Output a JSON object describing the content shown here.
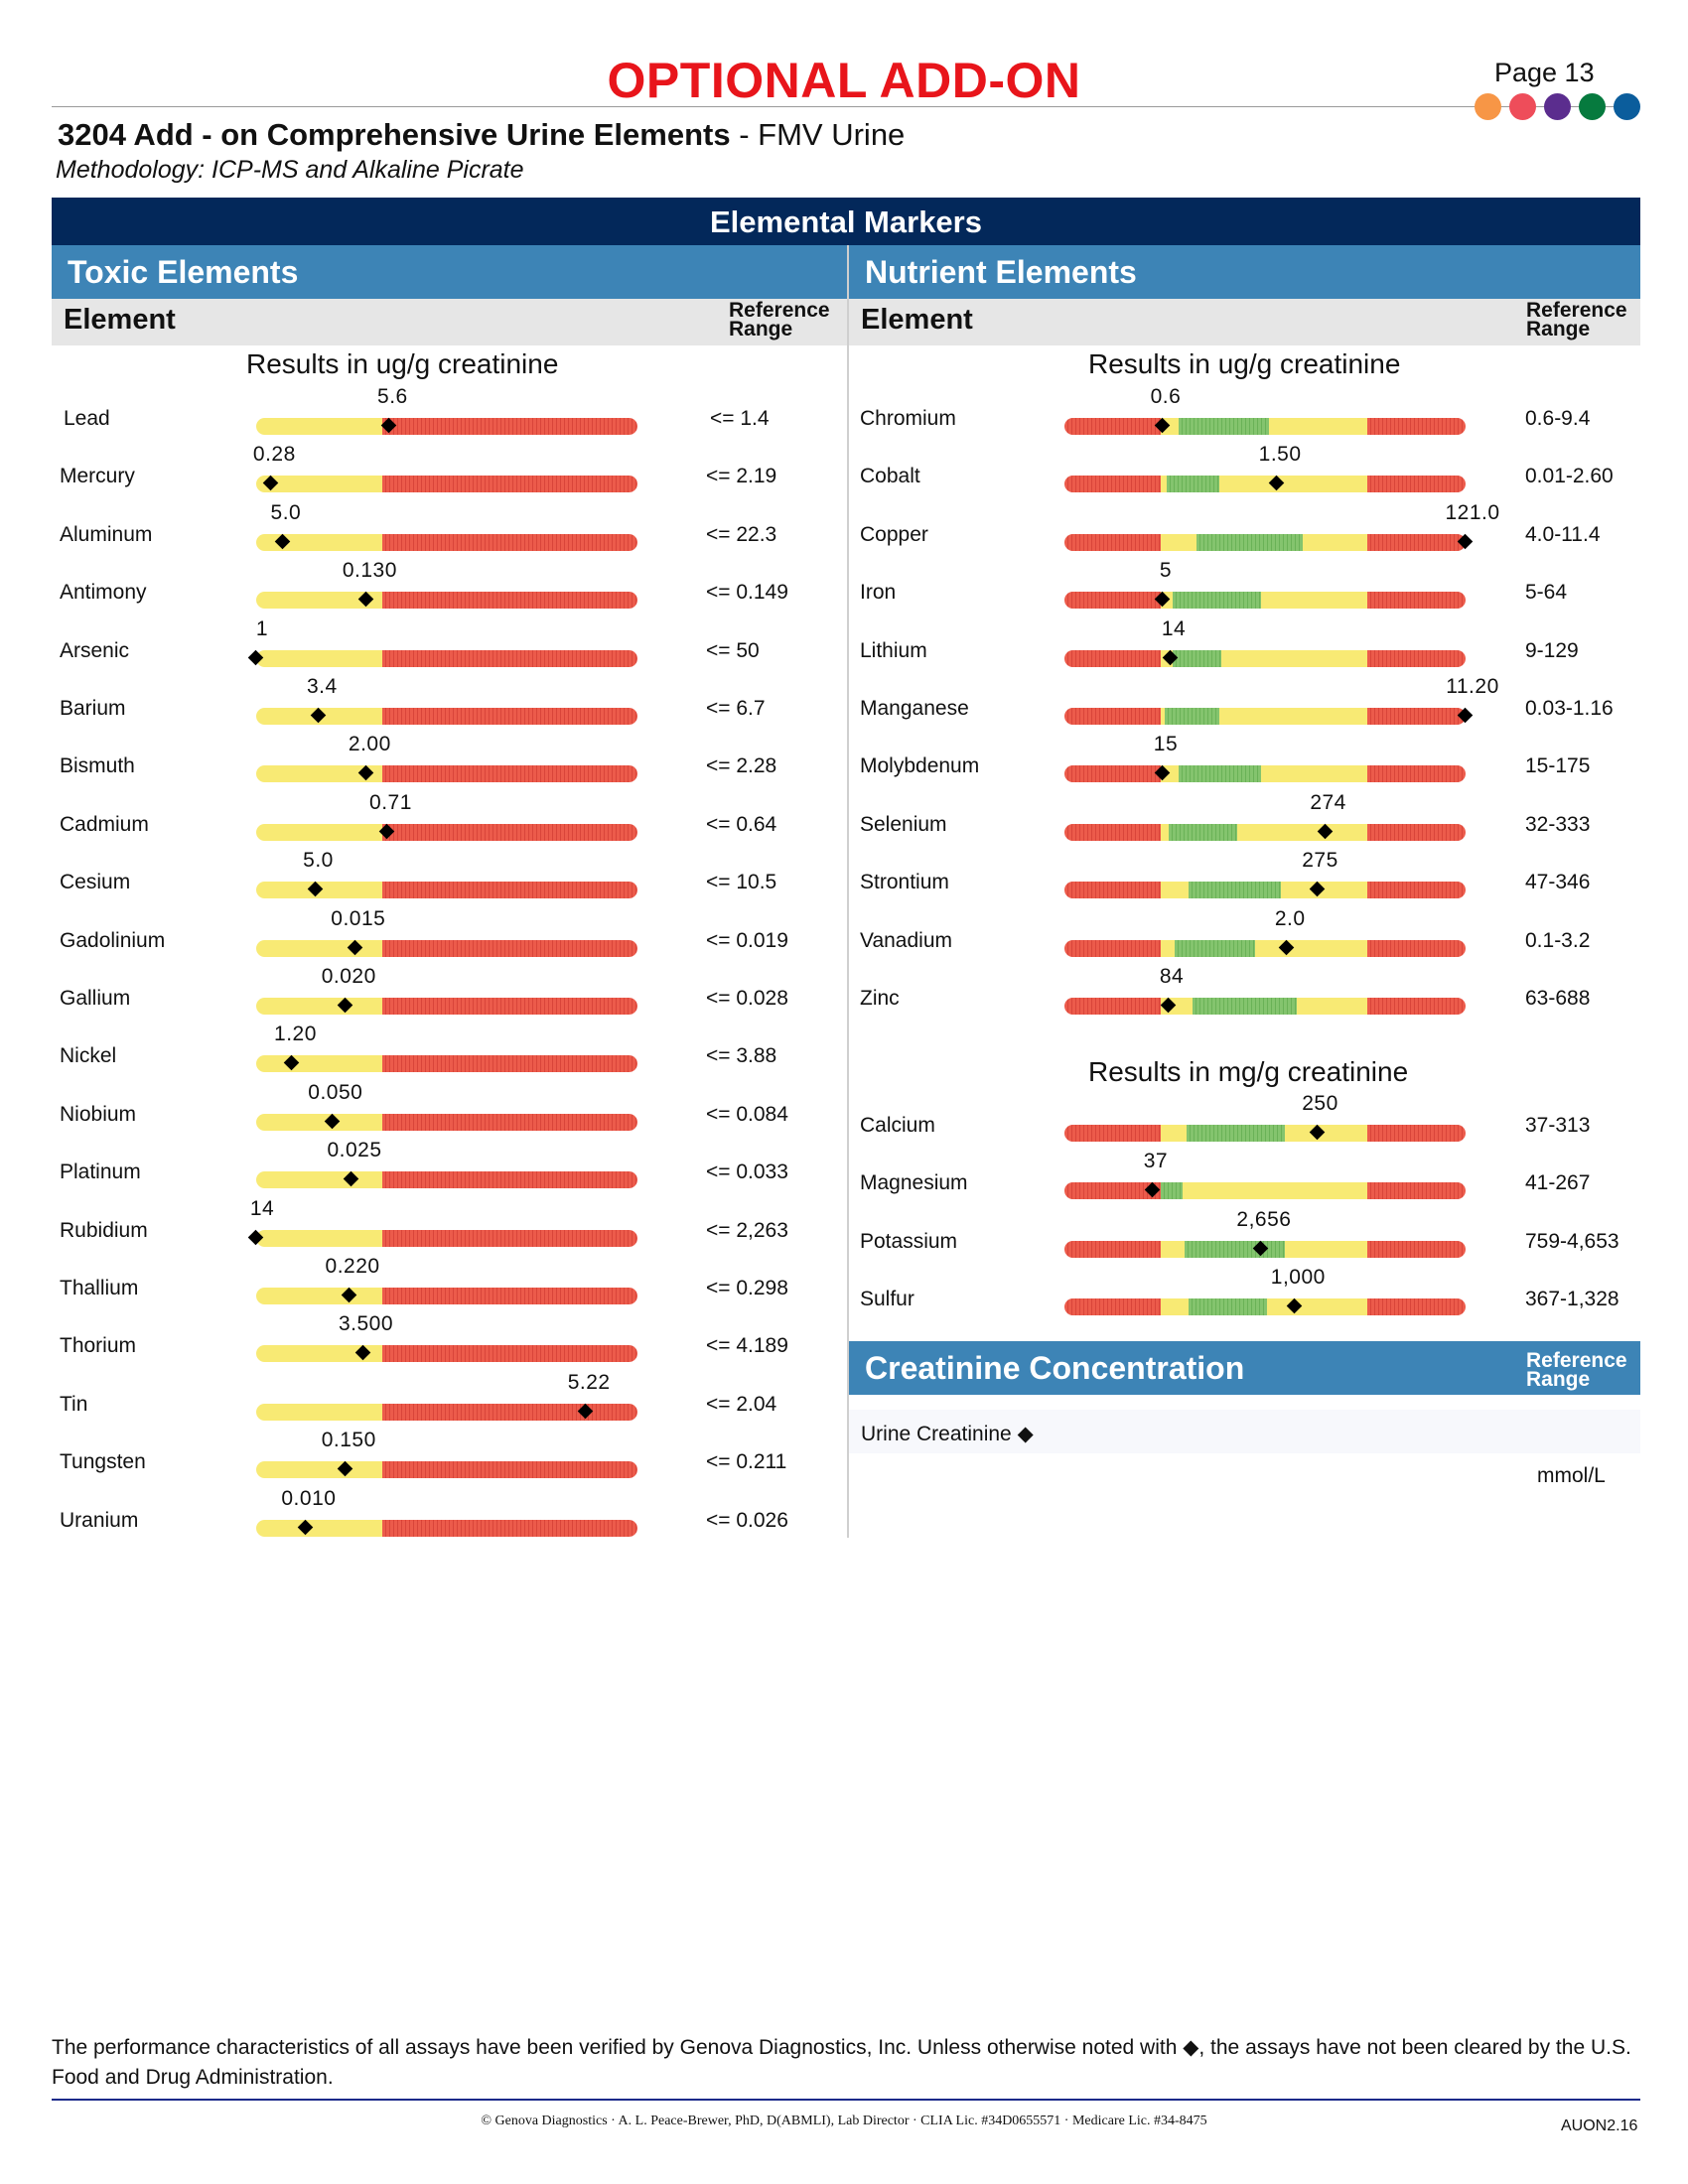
{
  "header": {
    "title": "OPTIONAL ADD-ON",
    "page": "Page 13",
    "dots": [
      "#f79646",
      "#ee4d5a",
      "#5b2d8e",
      "#067a3e",
      "#0b5d9c"
    ],
    "test_name": "3204 Add - on Comprehensive Urine Elements",
    "test_suffix": "- FMV Urine",
    "methodology": "Methodology: ICP-MS and Alkaline Picrate"
  },
  "markers_title": "Elemental Markers",
  "toxic": {
    "title": "Toxic Elements",
    "col_element": "Element",
    "col_ref": [
      "Reference",
      "Range"
    ],
    "units": "Results in ug/g creatinine",
    "rows": [
      {
        "name": "Lead",
        "value": "5.6",
        "ref": "<= 1.4",
        "pos": 0.35
      },
      {
        "name": "Mercury",
        "value": "0.28",
        "ref": "<= 2.19",
        "pos": 0.04
      },
      {
        "name": "Aluminum",
        "value": "5.0",
        "ref": "<= 22.3",
        "pos": 0.07
      },
      {
        "name": "Antimony",
        "value": "0.130",
        "ref": "<= 0.149",
        "pos": 0.29
      },
      {
        "name": "Arsenic",
        "value": "1",
        "ref": "<= 50",
        "pos": 0.0
      },
      {
        "name": "Barium",
        "value": "3.4",
        "ref": "<= 6.7",
        "pos": 0.165
      },
      {
        "name": "Bismuth",
        "value": "2.00",
        "ref": "<= 2.28",
        "pos": 0.29
      },
      {
        "name": "Cadmium",
        "value": "0.71",
        "ref": "<= 0.64",
        "pos": 0.345
      },
      {
        "name": "Cesium",
        "value": "5.0",
        "ref": "<= 10.5",
        "pos": 0.155
      },
      {
        "name": "Gadolinium",
        "value": "0.015",
        "ref": "<= 0.019",
        "pos": 0.26
      },
      {
        "name": "Gallium",
        "value": "0.020",
        "ref": "<= 0.028",
        "pos": 0.235
      },
      {
        "name": "Nickel",
        "value": "1.20",
        "ref": "<= 3.88",
        "pos": 0.095
      },
      {
        "name": "Niobium",
        "value": "0.050",
        "ref": "<= 0.084",
        "pos": 0.2
      },
      {
        "name": "Platinum",
        "value": "0.025",
        "ref": "<= 0.033",
        "pos": 0.25
      },
      {
        "name": "Rubidium",
        "value": "14",
        "ref": "<= 2,263",
        "pos": 0.0
      },
      {
        "name": "Thallium",
        "value": "0.220",
        "ref": "<= 0.298",
        "pos": 0.245
      },
      {
        "name": "Thorium",
        "value": "3.500",
        "ref": "<= 4.189",
        "pos": 0.28
      },
      {
        "name": "Tin",
        "value": "5.22",
        "ref": "<= 2.04",
        "pos": 0.865
      },
      {
        "name": "Tungsten",
        "value": "0.150",
        "ref": "<= 0.211",
        "pos": 0.235
      },
      {
        "name": "Uranium",
        "value": "0.010",
        "ref": "<= 0.026",
        "pos": 0.13
      }
    ]
  },
  "nutrient": {
    "title": "Nutrient Elements",
    "col_element": "Element",
    "col_ref": [
      "Reference",
      "Range"
    ],
    "units": "Results in ug/g creatinine",
    "rows": [
      {
        "name": "Chromium",
        "value": "0.6",
        "ref": "0.6-9.4",
        "pos": 0.245,
        "green": [
          0.285,
          0.51
        ]
      },
      {
        "name": "Cobalt",
        "value": "1.50",
        "ref": "0.01-2.60",
        "pos": 0.53,
        "green": [
          0.255,
          0.385
        ]
      },
      {
        "name": "Copper",
        "value": "121.0",
        "ref": "4.0-11.4",
        "pos": 1.0,
        "green": [
          0.33,
          0.595
        ]
      },
      {
        "name": "Iron",
        "value": "5",
        "ref": "5-64",
        "pos": 0.245,
        "green": [
          0.27,
          0.49
        ]
      },
      {
        "name": "Lithium",
        "value": "14",
        "ref": "9-129",
        "pos": 0.265,
        "green": [
          0.27,
          0.39
        ]
      },
      {
        "name": "Manganese",
        "value": "11.20",
        "ref": "0.03-1.16",
        "pos": 1.0,
        "green": [
          0.25,
          0.385
        ]
      },
      {
        "name": "Molybdenum",
        "value": "15",
        "ref": "15-175",
        "pos": 0.245,
        "green": [
          0.285,
          0.49
        ]
      },
      {
        "name": "Selenium",
        "value": "274",
        "ref": "32-333",
        "pos": 0.65,
        "green": [
          0.26,
          0.43
        ]
      },
      {
        "name": "Strontium",
        "value": "275",
        "ref": "47-346",
        "pos": 0.63,
        "green": [
          0.31,
          0.54
        ]
      },
      {
        "name": "Vanadium",
        "value": "2.0",
        "ref": "0.1-3.2",
        "pos": 0.555,
        "green": [
          0.275,
          0.475
        ]
      },
      {
        "name": "Zinc",
        "value": "84",
        "ref": "63-688",
        "pos": 0.26,
        "green": [
          0.32,
          0.58
        ]
      }
    ],
    "units2": "Results in mg/g creatinine",
    "rows2": [
      {
        "name": "Calcium",
        "value": "250",
        "ref": "37-313",
        "pos": 0.63,
        "green": [
          0.305,
          0.55
        ]
      },
      {
        "name": "Magnesium",
        "value": "37",
        "ref": "41-267",
        "pos": 0.22,
        "green": [
          0.24,
          0.295
        ]
      },
      {
        "name": "Potassium",
        "value": "2,656",
        "ref": "759-4,653",
        "pos": 0.49,
        "green": [
          0.3,
          0.55
        ]
      },
      {
        "name": "Sulfur",
        "value": "1,000",
        "ref": "367-1,328",
        "pos": 0.575,
        "green": [
          0.31,
          0.505
        ]
      }
    ]
  },
  "creatinine": {
    "title": "Creatinine Concentration",
    "col_ref": [
      "Reference",
      "Range"
    ],
    "row_label": "Urine Creatinine ◆",
    "unit": "mmol/L"
  },
  "footer": {
    "note": "The performance characteristics of all assays have been verified by Genova Diagnostics, Inc. Unless otherwise noted with ◆, the assays have not been cleared by the U.S. Food and Drug Administration.",
    "lab": "© Genova Diagnostics · A. L. Peace-Brewer, PhD, D(ABMLI), Lab Director · CLIA Lic. #34D0655571 · Medicare Lic. #34-8475",
    "code": "AUON2.16"
  }
}
